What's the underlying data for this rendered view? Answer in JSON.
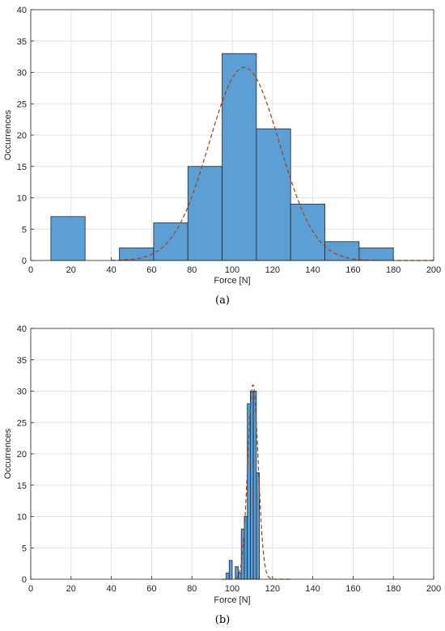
{
  "chart_data": [
    {
      "type": "bar",
      "subtype": "histogram",
      "xlabel": "Force [N]",
      "ylabel": "Occurrences",
      "xlim": [
        0,
        200
      ],
      "ylim": [
        0,
        40
      ],
      "xticks": [
        "0",
        "20",
        "40",
        "60",
        "80",
        "100",
        "120",
        "140",
        "160",
        "180",
        "200"
      ],
      "yticks": [
        "0",
        "5",
        "10",
        "15",
        "20",
        "25",
        "30",
        "35",
        "40"
      ],
      "grid": true,
      "bins": [
        {
          "x0": 10,
          "x1": 27,
          "count": 7
        },
        {
          "x0": 27,
          "x1": 44,
          "count": 0
        },
        {
          "x0": 44,
          "x1": 61,
          "count": 2
        },
        {
          "x0": 61,
          "x1": 78,
          "count": 6
        },
        {
          "x0": 78,
          "x1": 95,
          "count": 15
        },
        {
          "x0": 95,
          "x1": 112,
          "count": 33
        },
        {
          "x0": 112,
          "x1": 129,
          "count": 21
        },
        {
          "x0": 129,
          "x1": 146,
          "count": 9
        },
        {
          "x0": 146,
          "x1": 163,
          "count": 3
        },
        {
          "x0": 163,
          "x1": 180,
          "count": 2
        }
      ],
      "fit": {
        "type": "normal",
        "mean": 106,
        "peak": 30.8,
        "std": 17.5,
        "x_range": [
          40,
          200
        ]
      },
      "colors": {
        "bar": "#5c9fd4",
        "fit": "#a0401a"
      },
      "caption": "(a)"
    },
    {
      "type": "bar",
      "subtype": "histogram",
      "xlabel": "Force [N]",
      "ylabel": "Occurrences",
      "xlim": [
        0,
        200
      ],
      "ylim": [
        0,
        40
      ],
      "xticks": [
        "0",
        "20",
        "40",
        "60",
        "80",
        "100",
        "120",
        "140",
        "160",
        "180",
        "200"
      ],
      "yticks": [
        "0",
        "5",
        "10",
        "15",
        "20",
        "25",
        "30",
        "35",
        "40"
      ],
      "grid": true,
      "bins": [
        {
          "x0": 97,
          "x1": 98.5,
          "count": 1
        },
        {
          "x0": 98.5,
          "x1": 100,
          "count": 3
        },
        {
          "x0": 100,
          "x1": 101.5,
          "count": 0
        },
        {
          "x0": 101.5,
          "x1": 103,
          "count": 2
        },
        {
          "x0": 103,
          "x1": 104.5,
          "count": 1
        },
        {
          "x0": 104.5,
          "x1": 106,
          "count": 8
        },
        {
          "x0": 106,
          "x1": 107.5,
          "count": 10
        },
        {
          "x0": 107.5,
          "x1": 109,
          "count": 28
        },
        {
          "x0": 109,
          "x1": 110.5,
          "count": 30
        },
        {
          "x0": 110.5,
          "x1": 112,
          "count": 30
        },
        {
          "x0": 112,
          "x1": 113.5,
          "count": 17
        }
      ],
      "fit": {
        "type": "normal",
        "mean": 110.3,
        "peak": 31,
        "std": 2.6,
        "x_range": [
          95,
          130
        ]
      },
      "colors": {
        "bar": "#5c9fd4",
        "fit": "#a0401a"
      },
      "caption": "(b)"
    }
  ]
}
